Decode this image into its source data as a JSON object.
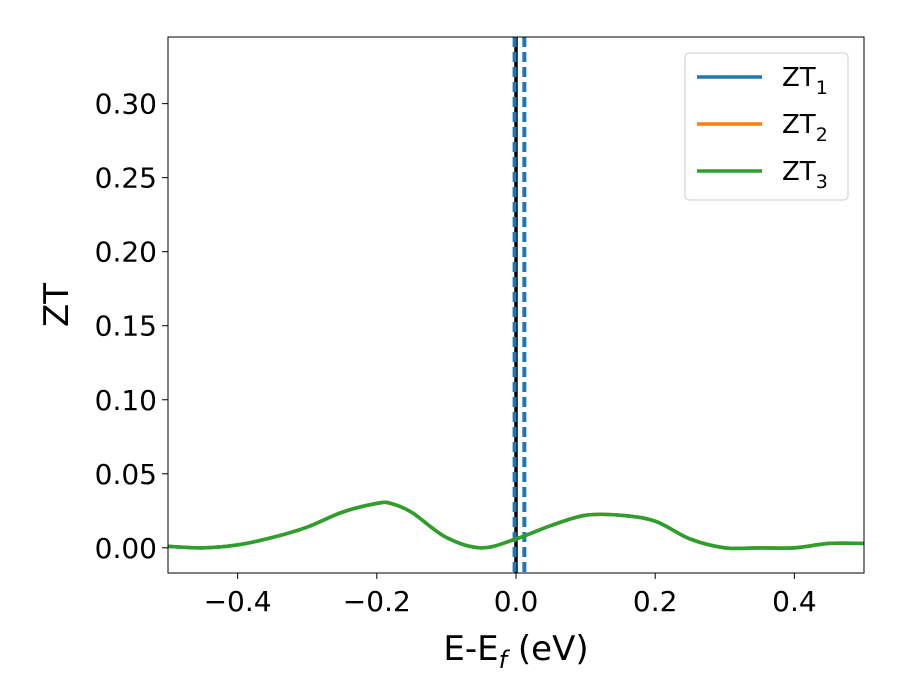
{
  "chart_data": {
    "type": "line",
    "xlabel": "E-E",
    "xlabel_sub": "f",
    "xlabel_unit": " (eV)",
    "ylabel": "ZT",
    "xlim": [
      -0.5,
      0.5
    ],
    "ylim": [
      -0.017,
      0.345
    ],
    "x_ticks": [
      -0.4,
      -0.2,
      0.0,
      0.2,
      0.4
    ],
    "x_tick_labels": [
      "−0.4",
      "−0.2",
      "0.0",
      "0.2",
      "0.4"
    ],
    "y_ticks": [
      0.0,
      0.05,
      0.1,
      0.15,
      0.2,
      0.25,
      0.3
    ],
    "y_tick_labels": [
      "0.00",
      "0.05",
      "0.10",
      "0.15",
      "0.20",
      "0.25",
      "0.30"
    ],
    "grid": false,
    "legend_position": "top-right",
    "series": [
      {
        "name": "ZT",
        "sub": "1",
        "color": "#1f77b4",
        "x": [
          -0.5,
          -0.45,
          -0.4,
          -0.35,
          -0.3,
          -0.25,
          -0.2,
          -0.18,
          -0.15,
          -0.1,
          -0.05,
          0.0,
          0.05,
          0.1,
          0.15,
          0.2,
          0.25,
          0.3,
          0.35,
          0.4,
          0.45,
          0.5
        ],
        "y": [
          0.001,
          0.0,
          0.002,
          0.007,
          0.014,
          0.024,
          0.03,
          0.03,
          0.024,
          0.007,
          0.0,
          0.006,
          0.015,
          0.022,
          0.022,
          0.018,
          0.006,
          0.0,
          0.0,
          0.0,
          0.003,
          0.003
        ]
      },
      {
        "name": "ZT",
        "sub": "2",
        "color": "#ff7f0e",
        "x": [
          -0.5,
          -0.45,
          -0.4,
          -0.35,
          -0.3,
          -0.25,
          -0.2,
          -0.18,
          -0.15,
          -0.1,
          -0.05,
          0.0,
          0.05,
          0.1,
          0.15,
          0.2,
          0.25,
          0.3,
          0.35,
          0.4,
          0.45,
          0.5
        ],
        "y": [
          0.001,
          0.0,
          0.002,
          0.007,
          0.014,
          0.024,
          0.03,
          0.03,
          0.024,
          0.007,
          0.0,
          0.006,
          0.015,
          0.022,
          0.022,
          0.018,
          0.006,
          0.0,
          0.0,
          0.0,
          0.003,
          0.003
        ]
      },
      {
        "name": "ZT",
        "sub": "3",
        "color": "#2ca02c",
        "x": [
          -0.5,
          -0.45,
          -0.4,
          -0.35,
          -0.3,
          -0.25,
          -0.2,
          -0.18,
          -0.15,
          -0.1,
          -0.05,
          0.0,
          0.05,
          0.1,
          0.15,
          0.2,
          0.25,
          0.3,
          0.35,
          0.4,
          0.45,
          0.5
        ],
        "y": [
          0.001,
          0.0,
          0.002,
          0.007,
          0.014,
          0.024,
          0.03,
          0.03,
          0.024,
          0.007,
          0.0,
          0.006,
          0.015,
          0.022,
          0.022,
          0.018,
          0.006,
          0.0,
          0.0,
          0.0,
          0.003,
          0.003
        ]
      }
    ],
    "vertical_lines": [
      {
        "x": 0.0,
        "color": "#000000",
        "style": "solid"
      },
      {
        "x": -0.002,
        "color": "#1f77b4",
        "style": "dashed"
      },
      {
        "x": 0.012,
        "color": "#1f77b4",
        "style": "dashed"
      }
    ]
  }
}
